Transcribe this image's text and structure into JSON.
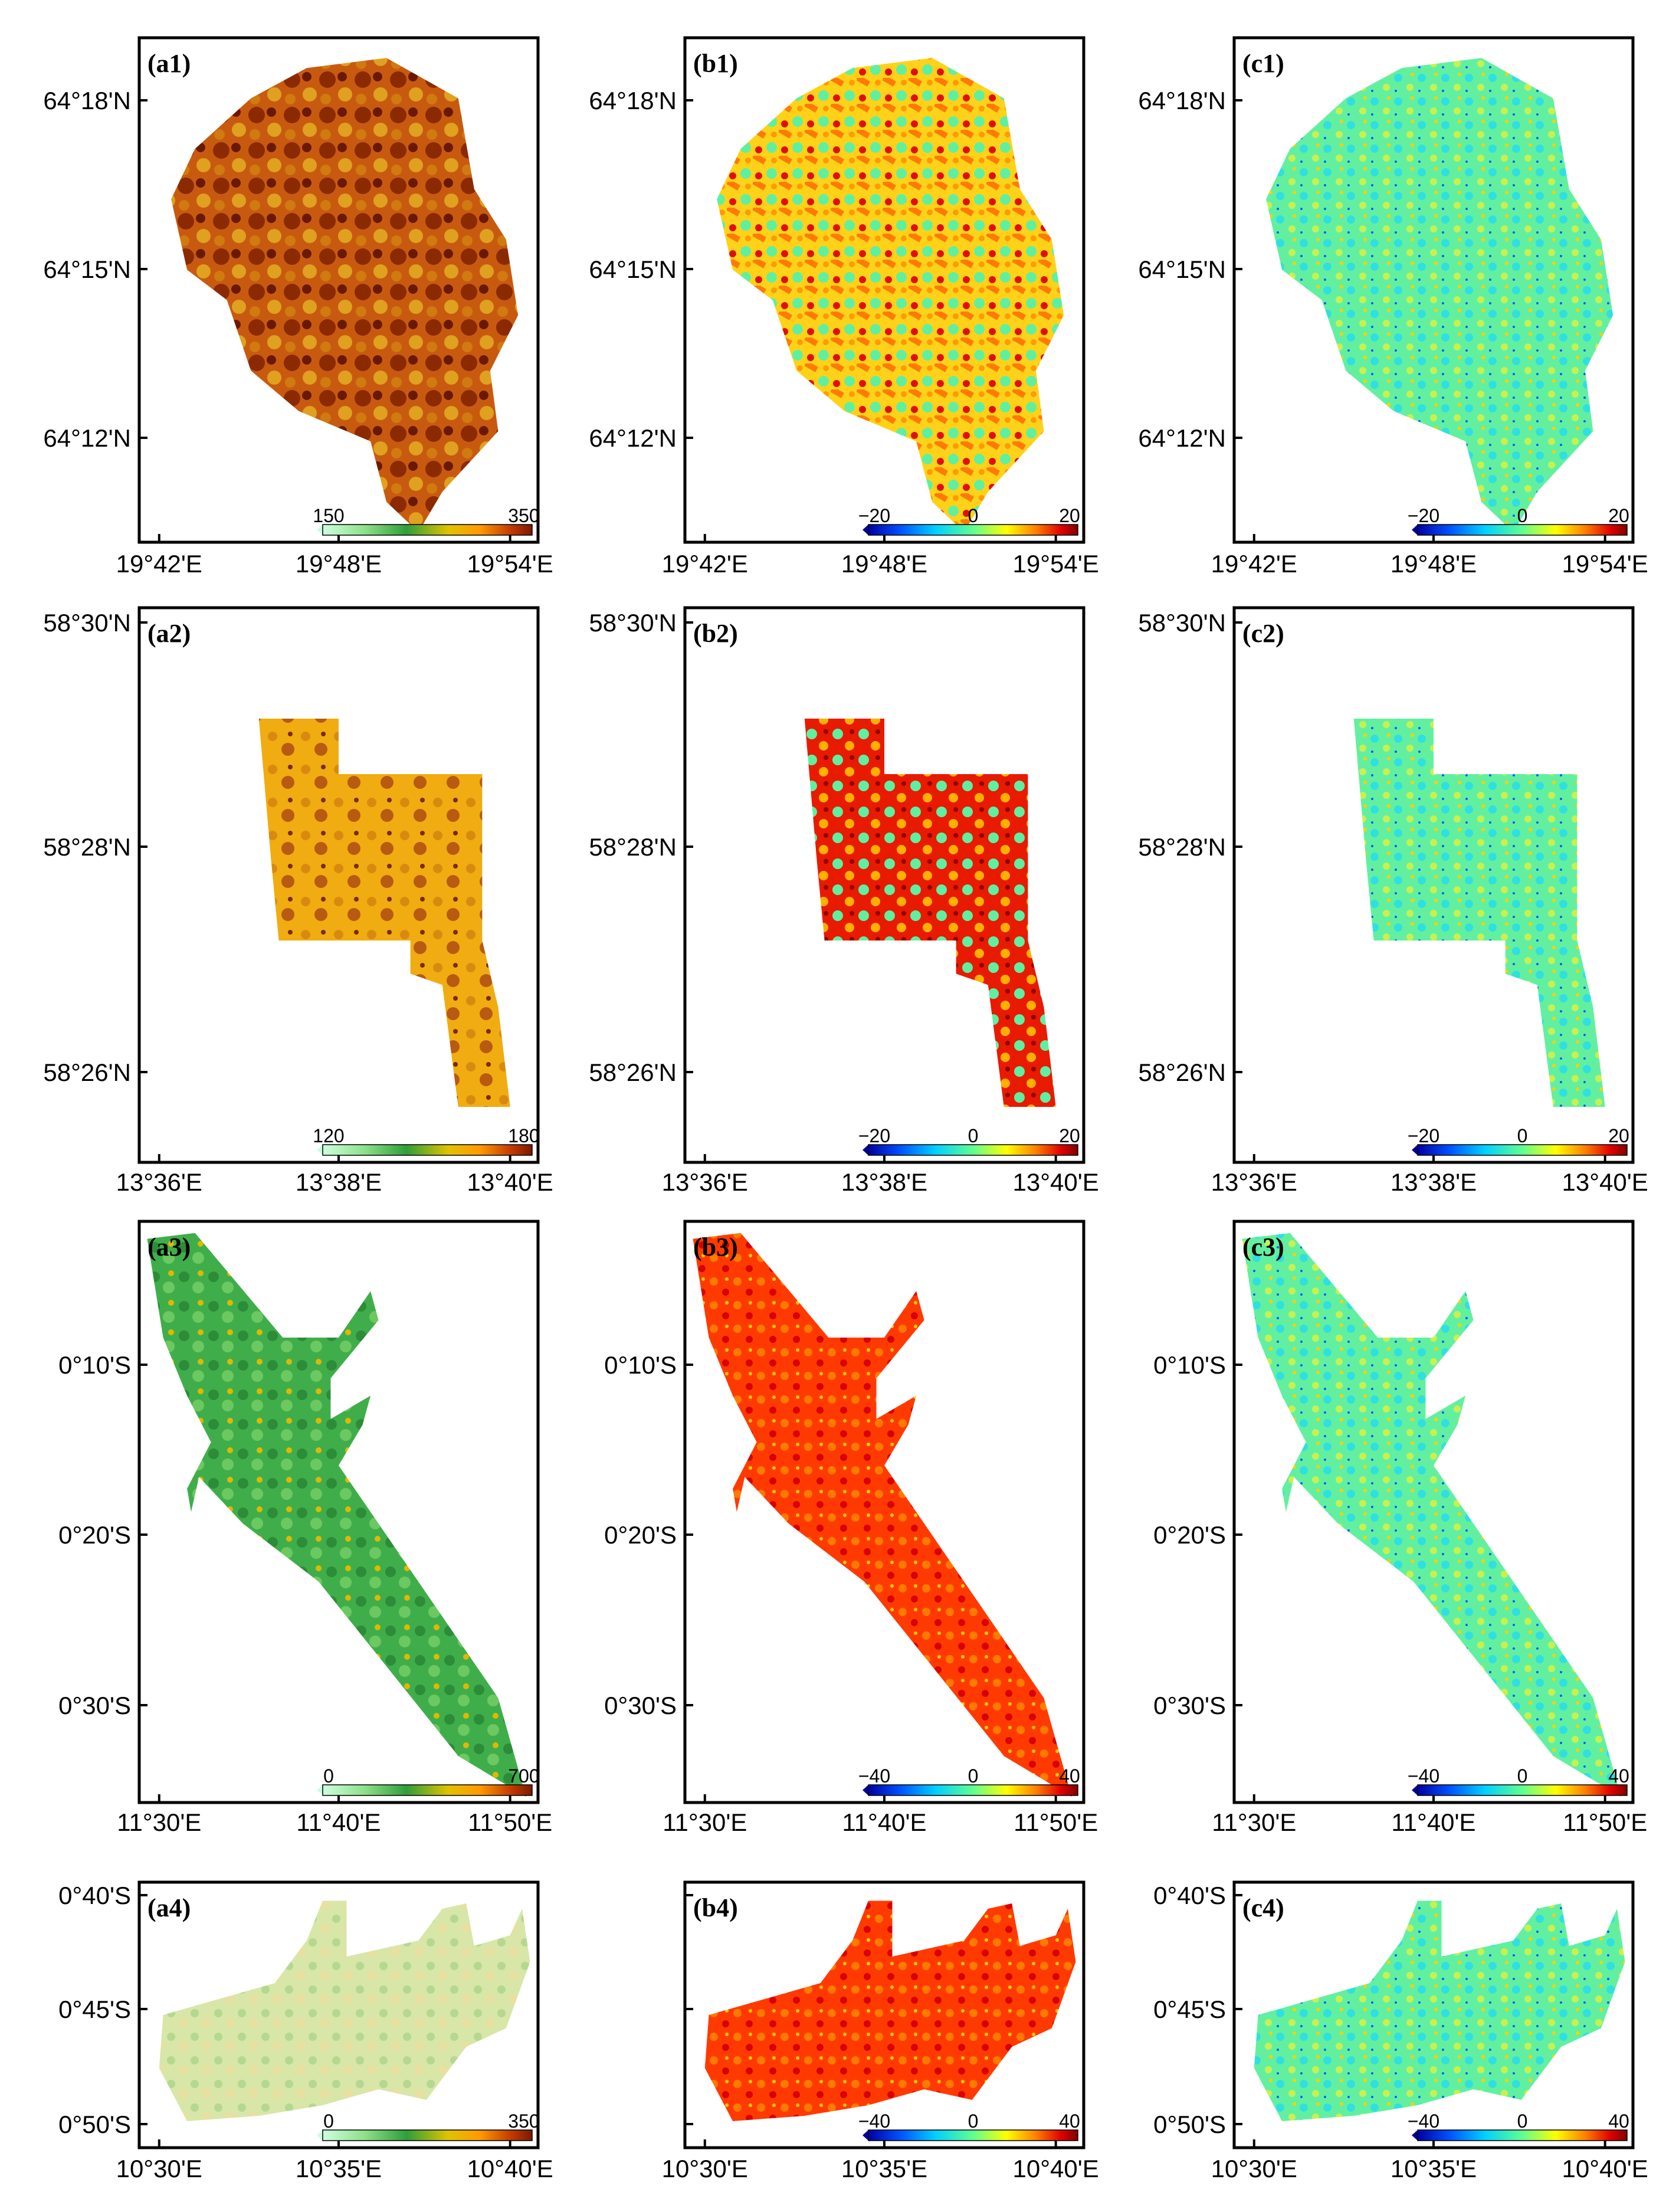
{
  "figure": {
    "rows": [
      {
        "region": "site-1",
        "lat_ticks": [
          "64°18'N",
          "64°15'N",
          "64°12'N"
        ],
        "lon_ticks": [
          "19°42'E",
          "19°48'E",
          "19°54'E"
        ],
        "panels": [
          {
            "label": "(a1)",
            "kind": "elevation",
            "cbar_min": "150",
            "cbar_max": "350",
            "cbar_mid": "",
            "show_lat_labels": true,
            "show_lon_labels": true
          },
          {
            "label": "(b1)",
            "kind": "difference-warm",
            "cbar_min": "−20",
            "cbar_mid": "0",
            "cbar_max": "20",
            "show_lat_labels": true,
            "show_lon_labels": true
          },
          {
            "label": "(c1)",
            "kind": "difference-cool",
            "cbar_min": "−20",
            "cbar_mid": "0",
            "cbar_max": "20",
            "show_lat_labels": true,
            "show_lon_labels": true
          }
        ]
      },
      {
        "region": "site-2",
        "lat_ticks": [
          "58°30'N",
          "58°28'N",
          "58°26'N"
        ],
        "lon_ticks": [
          "13°36'E",
          "13°38'E",
          "13°40'E"
        ],
        "panels": [
          {
            "label": "(a2)",
            "kind": "elevation",
            "cbar_min": "120",
            "cbar_max": "180",
            "cbar_mid": "",
            "show_lat_labels": true,
            "show_lon_labels": true
          },
          {
            "label": "(b2)",
            "kind": "difference-warm",
            "cbar_min": "−20",
            "cbar_mid": "0",
            "cbar_max": "20",
            "show_lat_labels": true,
            "show_lon_labels": true
          },
          {
            "label": "(c2)",
            "kind": "difference-cool",
            "cbar_min": "−20",
            "cbar_mid": "0",
            "cbar_max": "20",
            "show_lat_labels": true,
            "show_lon_labels": true
          }
        ]
      },
      {
        "region": "site-3",
        "lat_ticks": [
          "0°10'S",
          "0°20'S",
          "0°30'S"
        ],
        "lon_ticks": [
          "11°30'E",
          "11°40'E",
          "11°50'E"
        ],
        "panels": [
          {
            "label": "(a3)",
            "kind": "elevation",
            "cbar_min": "0",
            "cbar_max": "700",
            "cbar_mid": "",
            "show_lat_labels": true,
            "show_lon_labels": true
          },
          {
            "label": "(b3)",
            "kind": "difference-hot",
            "cbar_min": "−40",
            "cbar_mid": "0",
            "cbar_max": "40",
            "show_lat_labels": true,
            "show_lon_labels": true
          },
          {
            "label": "(c3)",
            "kind": "difference-cool",
            "cbar_min": "−40",
            "cbar_mid": "0",
            "cbar_max": "40",
            "show_lat_labels": true,
            "show_lon_labels": true
          }
        ]
      },
      {
        "region": "site-4",
        "lat_ticks": [
          "0°40'S",
          "0°45'S",
          "0°50'S"
        ],
        "lon_ticks": [
          "10°30'E",
          "10°35'E",
          "10°40'E"
        ],
        "panels": [
          {
            "label": "(a4)",
            "kind": "elevation",
            "cbar_min": "0",
            "cbar_max": "350",
            "cbar_mid": "",
            "show_lat_labels": true,
            "show_lon_labels": true
          },
          {
            "label": "(b4)",
            "kind": "difference-hot",
            "cbar_min": "−40",
            "cbar_mid": "0",
            "cbar_max": "40",
            "show_lat_labels": false,
            "show_lon_labels": true
          },
          {
            "label": "(c4)",
            "kind": "difference-cool",
            "cbar_min": "−40",
            "cbar_mid": "0",
            "cbar_max": "40",
            "show_lat_labels": true,
            "show_lon_labels": true
          }
        ]
      }
    ],
    "colors": {
      "frame": "#000000",
      "background": "#ffffff",
      "elevation_ramp": [
        "#ccffe0",
        "#8fe08a",
        "#2f9e3a",
        "#e0c300",
        "#ff9a00",
        "#c23a00",
        "#7a1a00"
      ],
      "difference_ramp": [
        "#0000a0",
        "#0050ff",
        "#00d0ff",
        "#60ff90",
        "#ffff00",
        "#ff8000",
        "#e00000",
        "#800000"
      ]
    }
  }
}
